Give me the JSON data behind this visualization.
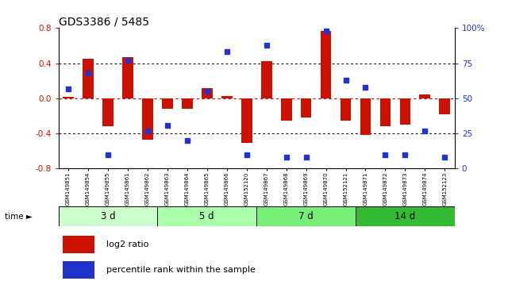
{
  "title": "GDS3386 / 5485",
  "samples": [
    "GSM149851",
    "GSM149854",
    "GSM149855",
    "GSM149861",
    "GSM149862",
    "GSM149863",
    "GSM149864",
    "GSM149865",
    "GSM149866",
    "GSM152120",
    "GSM149867",
    "GSM149868",
    "GSM149869",
    "GSM149870",
    "GSM152121",
    "GSM149871",
    "GSM149872",
    "GSM149873",
    "GSM149874",
    "GSM152123"
  ],
  "log2_ratio": [
    0.02,
    0.45,
    -0.32,
    0.47,
    -0.47,
    -0.12,
    -0.12,
    0.12,
    0.03,
    -0.51,
    0.42,
    -0.25,
    -0.22,
    0.77,
    -0.25,
    -0.42,
    -0.32,
    -0.3,
    0.04,
    -0.18
  ],
  "percentile": [
    57,
    68,
    10,
    77,
    27,
    31,
    20,
    55,
    83,
    10,
    88,
    8,
    8,
    98,
    63,
    58,
    10,
    10,
    27,
    8
  ],
  "groups": [
    {
      "label": "3 d",
      "start": 0,
      "end": 5,
      "color": "#ccffcc"
    },
    {
      "label": "5 d",
      "start": 5,
      "end": 10,
      "color": "#aaffaa"
    },
    {
      "label": "7 d",
      "start": 10,
      "end": 15,
      "color": "#77ee77"
    },
    {
      "label": "14 d",
      "start": 15,
      "end": 20,
      "color": "#33bb33"
    }
  ],
  "ylim": [
    -0.8,
    0.8
  ],
  "yticks_left": [
    -0.8,
    -0.4,
    0.0,
    0.4,
    0.8
  ],
  "yticks_right": [
    0,
    25,
    50,
    75,
    100
  ],
  "bar_color": "#cc1100",
  "dot_color": "#2233cc",
  "hline_color": "#cc0000",
  "grid_color": "#000000",
  "bg_color": "#ffffff",
  "tick_label_color_left": "#cc1100",
  "tick_label_color_right": "#2233cc",
  "bar_width": 0.55,
  "dot_size": 5
}
